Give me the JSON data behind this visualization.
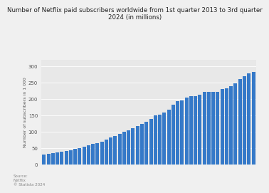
{
  "title": "Number of Netflix paid subscribers worldwide from 1st quarter 2013 to 3rd quarter\n2024 (in millions)",
  "ylabel": "Number of subscribers in 1 000",
  "bar_color": "#3579c8",
  "background_color": "#f0f0f0",
  "plot_background": "#e8e8e8",
  "ylim": [
    0,
    320
  ],
  "yticks": [
    0,
    50,
    100,
    150,
    200,
    250,
    300
  ],
  "ytick_labels": [
    "0",
    "50",
    "100",
    "150",
    "200",
    "250",
    "300"
  ],
  "source_text": "Source:\nNetflix\n© Statista 2024",
  "values": [
    29.17,
    31.09,
    33.42,
    35.67,
    37.69,
    40.35,
    43.17,
    46.65,
    50.05,
    53.07,
    57.39,
    61.48,
    65.55,
    69.17,
    74.76,
    81.5,
    86.67,
    93.8,
    98.75,
    104.02,
    110.64,
    117.58,
    124.38,
    130.14,
    139.26,
    148.86,
    151.56,
    158.33,
    167.09,
    182.86,
    192.95,
    195.15,
    203.66,
    207.64,
    209.18,
    213.56,
    221.84,
    220.67,
    221.64,
    222.06,
    231.34,
    232.5,
    238.39,
    247.15,
    260.28,
    269.6,
    277.65,
    282.72
  ]
}
